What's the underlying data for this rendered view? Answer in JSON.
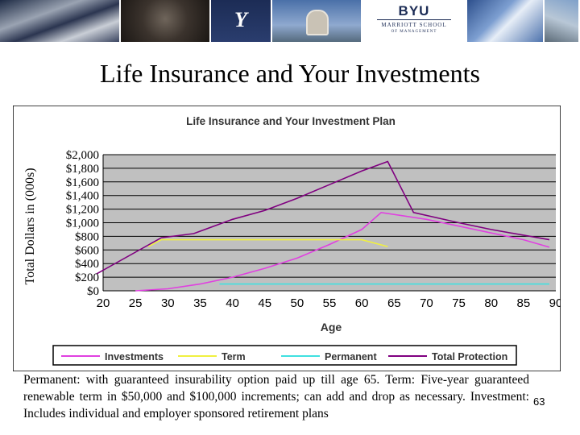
{
  "slide": {
    "title": "Life Insurance and Your Investments",
    "caption": "Permanent:  with guaranteed insurability option paid up till age 65.  Term:  Five-year guaranteed renewable term in $50,000 and $100,000 increments; can add and drop as necessary.  Investment:  Includes individual and employer sponsored retirement plans",
    "page_number": "63"
  },
  "banner": {
    "logo_top": "BYU",
    "logo_school": "MARRIOTT SCHOOL",
    "logo_sub": "OF MANAGEMENT",
    "y_mark": "Y"
  },
  "chart_data": {
    "type": "line",
    "title": "Life Insurance and Your Investment Plan",
    "xlabel": "Age",
    "ylabel": "Total Dollars in (000s)",
    "xlim": [
      20,
      90
    ],
    "ylim": [
      0,
      2000
    ],
    "x_ticks": [
      "20",
      "25",
      "30",
      "35",
      "40",
      "45",
      "50",
      "55",
      "60",
      "65",
      "70",
      "75",
      "80",
      "85",
      "90"
    ],
    "y_ticks": [
      "$0",
      "$200",
      "$400",
      "$600",
      "$800",
      "$1,000",
      "$1,200",
      "$1,400",
      "$1,600",
      "$1,800",
      "$2,000"
    ],
    "grid": true,
    "legend": "bottom",
    "plot_background": "#c0c0c0",
    "series": [
      {
        "name": "Investments",
        "color": "#e040e0",
        "points": [
          [
            25,
            0
          ],
          [
            30,
            30
          ],
          [
            35,
            100
          ],
          [
            40,
            200
          ],
          [
            45,
            330
          ],
          [
            50,
            480
          ],
          [
            55,
            680
          ],
          [
            60,
            900
          ],
          [
            63,
            1150
          ],
          [
            70,
            1050
          ],
          [
            75,
            950
          ],
          [
            80,
            850
          ],
          [
            85,
            750
          ],
          [
            89,
            640
          ]
        ]
      },
      {
        "name": "Term",
        "color": "#f0f040",
        "points": [
          [
            27,
            650
          ],
          [
            29,
            750
          ],
          [
            60,
            750
          ],
          [
            64,
            650
          ]
        ]
      },
      {
        "name": "Permanent",
        "color": "#40e0e0",
        "points": [
          [
            38,
            100
          ],
          [
            89,
            100
          ]
        ]
      },
      {
        "name": "Total Protection",
        "color": "#800080",
        "points": [
          [
            19,
            250
          ],
          [
            29,
            780
          ],
          [
            34,
            840
          ],
          [
            40,
            1050
          ],
          [
            45,
            1180
          ],
          [
            50,
            1360
          ],
          [
            55,
            1560
          ],
          [
            60,
            1760
          ],
          [
            64,
            1900
          ],
          [
            68,
            1150
          ],
          [
            75,
            1000
          ],
          [
            80,
            900
          ],
          [
            89,
            750
          ]
        ]
      }
    ]
  }
}
